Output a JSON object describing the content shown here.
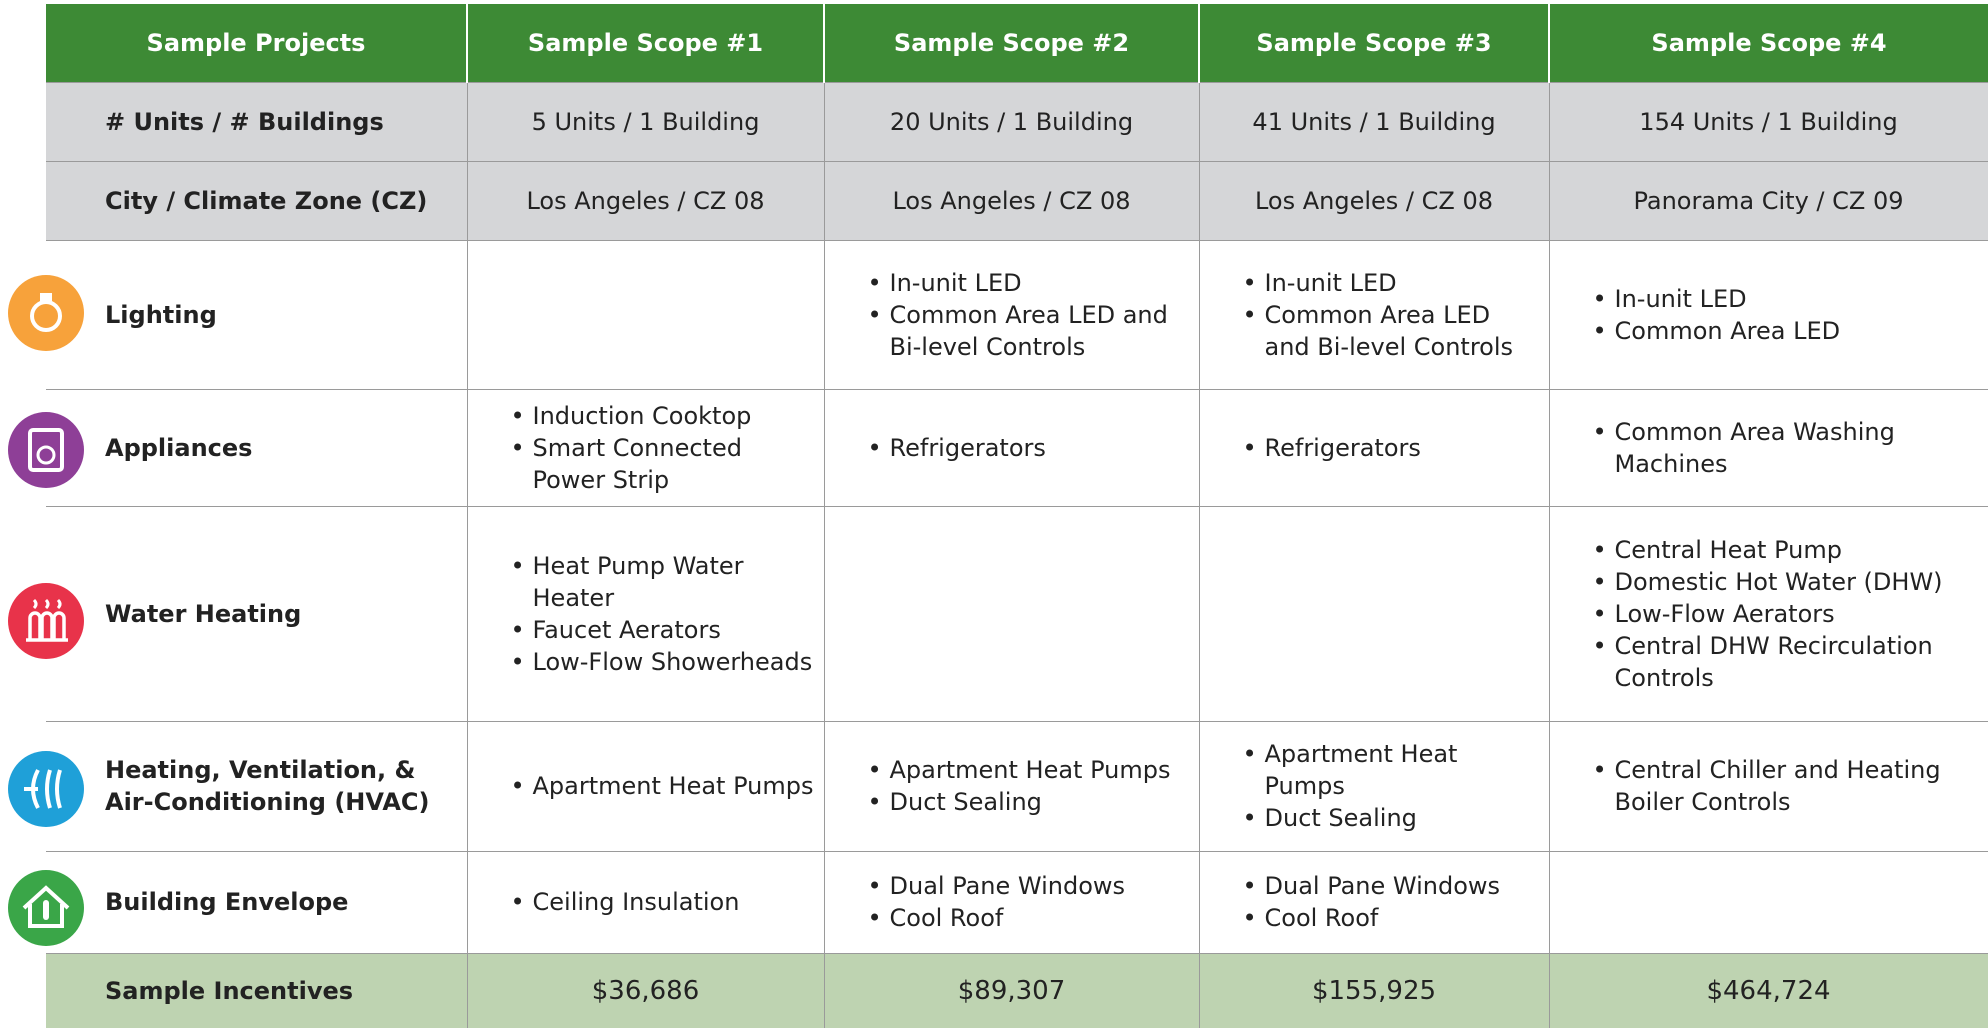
{
  "table": {
    "header": [
      "Sample Projects",
      "Sample Scope #1",
      "Sample Scope #2",
      "Sample Scope #3",
      "Sample Scope #4"
    ],
    "rows": [
      {
        "label": "# Units / # Buildings",
        "cells": [
          "5 Units / 1 Building",
          "20 Units / 1 Building",
          "41 Units / 1 Building",
          "154 Units / 1 Building"
        ]
      },
      {
        "label": "City / Climate Zone (CZ)",
        "cells": [
          "Los Angeles / CZ 08",
          "Los Angeles / CZ 08",
          "Los Angeles / CZ 08",
          "Panorama City / CZ 09"
        ]
      },
      {
        "label": "Lighting",
        "cells": [
          [],
          [
            "In-unit LED",
            "Common Area LED and Bi-level Controls"
          ],
          [
            "In-unit LED",
            "Common Area LED and Bi-level Controls"
          ],
          [
            "In-unit LED",
            "Common Area LED"
          ]
        ]
      },
      {
        "label": "Appliances",
        "cells": [
          [
            "Induction Cooktop",
            "Smart Connected Power Strip"
          ],
          [
            "Refrigerators"
          ],
          [
            "Refrigerators"
          ],
          [
            "Common Area Washing Machines"
          ]
        ]
      },
      {
        "label": "Water Heating",
        "cells": [
          [
            "Heat Pump Water Heater",
            "Faucet Aerators",
            "Low-Flow Showerheads"
          ],
          [],
          [],
          [
            "Central Heat Pump",
            "Domestic Hot Water (DHW)",
            "Low-Flow Aerators",
            "Central DHW Recirculation Controls"
          ]
        ]
      },
      {
        "label": "Heating, Ventilation, & Air-Conditioning (HVAC)",
        "cells": [
          [
            "Apartment Heat Pumps"
          ],
          [
            "Apartment Heat Pumps",
            "Duct Sealing"
          ],
          [
            "Apartment Heat Pumps",
            "Duct Sealing"
          ],
          [
            "Central Chiller and Heating Boiler Controls"
          ]
        ]
      },
      {
        "label": "Building Envelope",
        "cells": [
          [
            "Ceiling Insulation"
          ],
          [
            "Dual Pane Windows",
            "Cool Roof"
          ],
          [
            "Dual Pane Windows",
            "Cool Roof"
          ],
          []
        ]
      },
      {
        "label": "Sample Incentives",
        "cells": [
          "$36,686",
          "$89,307",
          "$155,925",
          "$464,724"
        ]
      }
    ]
  }
}
